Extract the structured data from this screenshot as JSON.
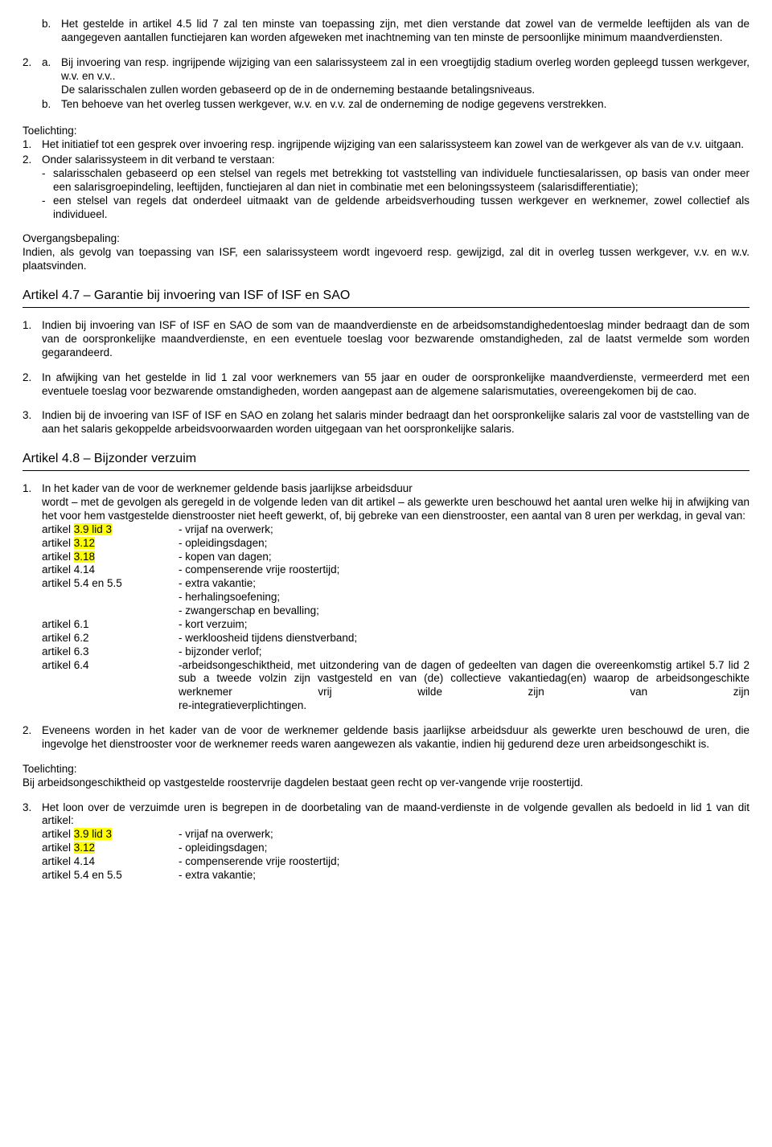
{
  "b_item": {
    "marker": "b.",
    "text": "Het gestelde in artikel 4.5 lid 7 zal ten minste van toepassing zijn, met dien verstande dat zowel van de vermelde leeftijden als van de aangegeven aantallen functiejaren kan worden afgeweken met inachtneming van ten minste de persoonlijke minimum maandverdiensten."
  },
  "item2": {
    "marker": "2.",
    "a_marker": "a.",
    "a_text": "Bij invoering van resp. ingrijpende wijziging van een salarissysteem zal in een vroegtijdig stadium overleg worden gepleegd tussen werkgever, w.v. en v.v..",
    "a_text2": "De salarisschalen zullen worden gebaseerd op de in de onderneming bestaande betalingsniveaus.",
    "b_marker": "b.",
    "b_text": "Ten behoeve van het overleg tussen werkgever, w.v. en v.v. zal de onderneming de nodige gegevens verstrekken."
  },
  "toelichting1": {
    "label": "Toelichting:",
    "n1_marker": "1.",
    "n1_text": "Het initiatief tot een gesprek over invoering resp. ingrijpende wijziging van een salarissysteem kan zowel van de werkgever als van de v.v. uitgaan.",
    "n2_marker": "2.",
    "n2_text": "Onder salarissysteem in dit verband te verstaan:",
    "b1_marker": "-",
    "b1_text": "salarisschalen gebaseerd op een stelsel van regels met betrekking tot vaststelling van individuele functiesalarissen, op basis van onder meer een salarisgroepindeling, leeftijden, functiejaren al dan niet in combinatie met een beloningssysteem (salarisdifferentiatie);",
    "b2_marker": "-",
    "b2_text": "een stelsel van regels dat onderdeel uitmaakt van de geldende arbeidsverhouding tussen werkgever en werknemer, zowel collectief als individueel."
  },
  "overgang": {
    "label": "Overgangsbepaling:",
    "text": "Indien, als gevolg van toepassing van ISF, een salarissysteem wordt ingevoerd resp. gewijzigd, zal dit in overleg tussen werkgever, v.v. en w.v. plaatsvinden."
  },
  "art47": {
    "title": "Artikel 4.7 – Garantie bij invoering van ISF of ISF en SAO",
    "n1_marker": "1.",
    "n1_text": "Indien bij invoering van ISF of ISF en SAO de som van de maandverdienste en de arbeidsomstandighedentoeslag minder bedraagt dan de som van de oorspronkelijke maandverdienste, en een eventuele toeslag voor bezwarende omstandigheden, zal de laatst vermelde som worden gegarandeerd.",
    "n2_marker": "2.",
    "n2_text": "In afwijking van het gestelde in lid 1 zal voor werknemers van 55 jaar en ouder de oorspronkelijke maandverdienste, vermeerderd met een eventuele toeslag voor bezwarende omstandigheden, worden aangepast aan de algemene salarismutaties, overeengekomen bij de cao.",
    "n3_marker": "3.",
    "n3_text": "Indien bij de invoering van ISF of ISF en SAO en zolang het salaris minder bedraagt dan het oorspronkelijke salaris zal voor de vaststelling van de aan het salaris gekoppelde arbeidsvoorwaarden worden uitgegaan van het oorspronkelijke salaris."
  },
  "art48": {
    "title": "Artikel 4.8 – Bijzonder verzuim",
    "n1_marker": "1.",
    "n1_intro": "In het kader van de voor de werknemer geldende basis jaarlijkse arbeidsduur",
    "n1_text": "wordt – met de gevolgen als geregeld in de volgende leden van dit artikel – als gewerkte uren beschouwd het aantal uren welke hij in afwijking van het voor hem vastgestelde dienstrooster niet heeft gewerkt, of, bij gebreke van een dienstrooster, een aantal van 8 uren per werkdag, in geval van:",
    "rows": [
      {
        "c1a": "artikel ",
        "hl": "3.9 lid 3",
        "c2": "- vrijaf na overwerk;"
      },
      {
        "c1a": "artikel ",
        "hl": "3.12",
        "c2": "- opleidingsdagen;"
      },
      {
        "c1a": "artikel ",
        "hl": "3.18",
        "c2": "- kopen van dagen;"
      },
      {
        "c1a": "artikel 4.14",
        "hl": "",
        "c2": "- compenserende vrije roostertijd;"
      },
      {
        "c1a": "artikel 5.4 en 5.5",
        "hl": "",
        "c2": "- extra vakantie;"
      },
      {
        "c1a": "",
        "hl": "",
        "c2": "- herhalingsoefening;"
      },
      {
        "c1a": "",
        "hl": "",
        "c2": "- zwangerschap en bevalling;"
      },
      {
        "c1a": "artikel 6.1",
        "hl": "",
        "c2": "- kort verzuim;"
      },
      {
        "c1a": "artikel 6.2",
        "hl": "",
        "c2": "- werkloosheid tijdens dienstverband;"
      },
      {
        "c1a": "artikel 6.3",
        "hl": "",
        "c2": "- bijzonder verlof;"
      }
    ],
    "row64_c1": "artikel 6.4",
    "row64_c2a": "-arbeidsongeschiktheid, met uitzondering van de dagen of gedeelten van dagen die overeenkomstig artikel 5.7 lid 2 sub a tweede volzin zijn vastgesteld en van (de) collectieve vakantiedag(en) waarop de arbeidsongeschikte werknemer vrij wilde zijn van zijn",
    "row64_c2b": "re-integratieverplichtingen.",
    "n2_marker": "2.",
    "n2_text": "Eveneens worden in het kader van de voor de werknemer geldende basis jaarlijkse arbeidsduur als gewerkte uren beschouwd de uren, die ingevolge het dienstrooster voor de werknemer reeds waren aangewezen als vakantie, indien hij gedurend deze uren arbeidsongeschikt is.",
    "toe_label": "Toelichting:",
    "toe_text": "Bij arbeidsongeschiktheid op vastgestelde roostervrije dagdelen bestaat geen recht op ver-vangende vrije roostertijd.",
    "n3_marker": "3.",
    "n3_text": "Het loon over de verzuimde uren is begrepen in de doorbetaling van de maand-verdienste in de volgende gevallen als bedoeld in lid 1 van dit artikel:",
    "rows3": [
      {
        "c1a": "artikel ",
        "hl": "3.9 lid 3",
        "c2": "- vrijaf na overwerk;"
      },
      {
        "c1a": "artikel ",
        "hl": "3.12",
        "c2": "- opleidingsdagen;"
      },
      {
        "c1a": "artikel 4.14",
        "hl": "",
        "c2": "- compenserende vrije roostertijd;"
      },
      {
        "c1a": "artikel 5.4 en 5.5",
        "hl": "",
        "c2": "- extra vakantie;"
      }
    ]
  }
}
